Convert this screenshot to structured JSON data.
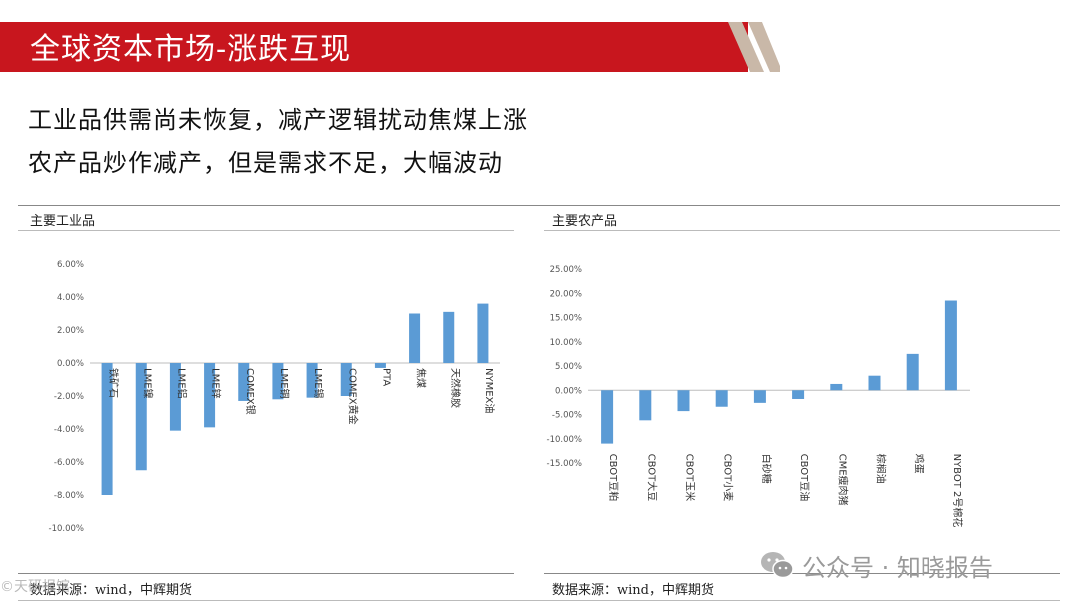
{
  "slide": {
    "title": "全球资本市场-涨跌互现",
    "headline1": "工业品供需尚未恢复，减产逻辑扰动焦煤上涨",
    "headline2": "农产品炒作减产，但是需求不足，大幅波动",
    "colors": {
      "title_bar": "#c8161e",
      "bar": "#5b9bd5",
      "deco": "#c9b8a8"
    }
  },
  "left_panel": {
    "label": "主要工业品",
    "source": "数据来源：wind，中辉期货"
  },
  "right_panel": {
    "label": "主要农产品",
    "source": "数据来源：wind，中辉期货"
  },
  "watermark": {
    "text": "公众号 · 知晓报告",
    "corner_text": "©天研报馆"
  },
  "chart_data": [
    {
      "type": "bar",
      "title": "",
      "categories": [
        "铁矿石",
        "LME镍",
        "LME铝",
        "LME锌",
        "COMEX银",
        "LME铜",
        "LME锡",
        "COMEX黄金",
        "PTA",
        "焦煤",
        "天然橡胶",
        "NYMEX油"
      ],
      "values": [
        -8.0,
        -6.5,
        -4.1,
        -3.9,
        -2.3,
        -2.2,
        -2.1,
        -2.0,
        -0.3,
        3.0,
        3.1,
        3.6
      ],
      "ylim": [
        -10,
        6
      ],
      "yticks": [
        "6.00%",
        "4.00%",
        "2.00%",
        "0.00%",
        "-2.00%",
        "-4.00%",
        "-6.00%",
        "-8.00%",
        "-10.00%"
      ],
      "ytick_values": [
        6,
        4,
        2,
        0,
        -2,
        -4,
        -6,
        -8,
        -10
      ],
      "xlabel": "",
      "ylabel": "",
      "grid": false,
      "legend": "none"
    },
    {
      "type": "bar",
      "title": "",
      "categories": [
        "CBOT豆粕",
        "CBOT大豆",
        "CBOT玉米",
        "CBOT小麦",
        "白砂糖",
        "CBOT豆油",
        "CME瘦肉猪",
        "棕榈油",
        "鸡蛋",
        "NYBOT 2号棉花"
      ],
      "values": [
        -11.0,
        -6.2,
        -4.3,
        -3.4,
        -2.6,
        -1.8,
        1.3,
        3.0,
        7.5,
        18.5
      ],
      "ylim": [
        -15,
        25
      ],
      "yticks": [
        "25.00%",
        "20.00%",
        "15.00%",
        "10.00%",
        "5.00%",
        "0.00%",
        "-5.00%",
        "-10.00%",
        "-15.00%"
      ],
      "ytick_values": [
        25,
        20,
        15,
        10,
        5,
        0,
        -5,
        -10,
        -15
      ],
      "xlabel": "",
      "ylabel": "",
      "grid": false,
      "legend": "none"
    }
  ]
}
